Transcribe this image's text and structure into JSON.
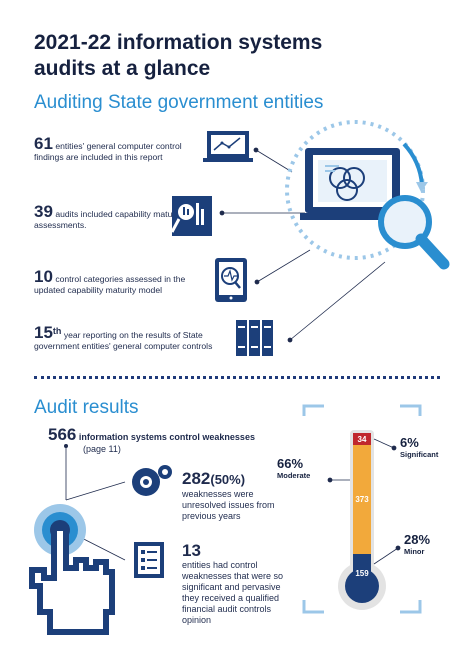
{
  "header": {
    "title_line1": "2021-22 information systems",
    "title_line2": "audits at a glance"
  },
  "section1": {
    "title": "Auditing State government entities",
    "stats": [
      {
        "value": "61",
        "text": "entities' general computer control findings are included in this report",
        "icon": "laptop-chart-icon"
      },
      {
        "value": "39",
        "text": "audits included capability maturity assessments.",
        "icon": "magnifier-gauge-icon"
      },
      {
        "value": "10",
        "text": "control categories assessed in the updated capability maturity model",
        "icon": "tablet-magnifier-icon"
      },
      {
        "value": "15",
        "sup": "th",
        "text": "year reporting on the results of State government entities' general computer controls",
        "icon": "binders-icon"
      }
    ]
  },
  "section2": {
    "title": "Audit results",
    "total": {
      "value": "566",
      "label": "information systems control weaknesses",
      "note": "(page 11)"
    },
    "unresolved": {
      "value": "282",
      "percent": "(50%)",
      "text": "weaknesses were unresolved issues from previous years",
      "icon": "gears-icon"
    },
    "qualified": {
      "value": "13",
      "text": "entities had control weaknesses that were so significant and pervasive they received a qualified financial audit controls opinion",
      "icon": "checklist-icon"
    }
  },
  "thermometer": {
    "segments": [
      {
        "name": "Significant",
        "count": 34,
        "percent": "6%",
        "color": "#c0272d"
      },
      {
        "name": "Moderate",
        "count": 373,
        "percent": "66%",
        "color": "#f2a93b"
      },
      {
        "name": "Minor",
        "count": 159,
        "percent": "28%",
        "color": "#1c3f7a"
      }
    ],
    "labels": {
      "count_top": "34",
      "count_mid": "373",
      "count_bottom": "159"
    }
  },
  "colors": {
    "navy": "#1c3f7a",
    "accent": "#2a8ed0",
    "light_blue": "#9cc7e8"
  }
}
